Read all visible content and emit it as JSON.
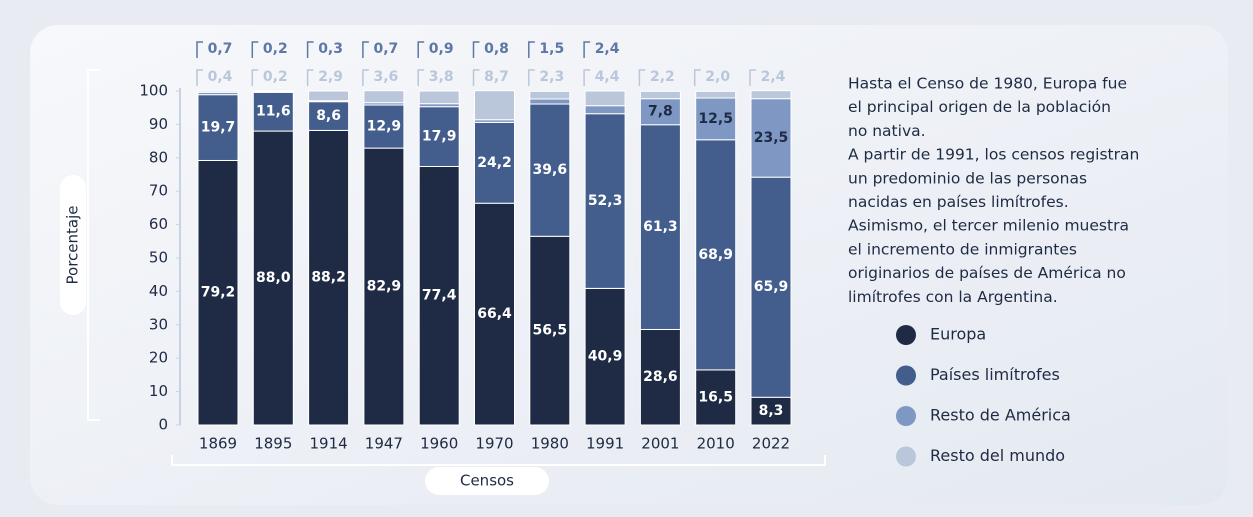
{
  "chart_data": {
    "type": "stacked_bar",
    "categories": [
      "1869",
      "1895",
      "1914",
      "1947",
      "1960",
      "1970",
      "1980",
      "1991",
      "2001",
      "2010",
      "2022"
    ],
    "series": [
      {
        "name": "Europa",
        "color": "#1f2b44",
        "values": [
          79.2,
          88.0,
          88.2,
          82.9,
          77.4,
          66.4,
          56.5,
          40.9,
          28.6,
          16.5,
          8.3
        ],
        "value_labels": [
          "79,2",
          "88,0",
          "88,2",
          "82,9",
          "77,4",
          "66,4",
          "56,5",
          "40,9",
          "28,6",
          "16,5",
          "8,3"
        ]
      },
      {
        "name": "Países limítrofes",
        "color": "#435d8c",
        "values": [
          19.7,
          11.6,
          8.6,
          12.9,
          17.9,
          24.2,
          39.6,
          52.3,
          61.3,
          68.9,
          65.9
        ],
        "value_labels": [
          "19,7",
          "11,6",
          "8,6",
          "12,9",
          "17,9",
          "24,2",
          "39,6",
          "52,3",
          "61,3",
          "68,9",
          "65,9"
        ]
      },
      {
        "name": "Resto de América",
        "color": "#7f98c3",
        "values": [
          0.7,
          0.2,
          0.3,
          0.7,
          0.9,
          0.8,
          1.5,
          2.4,
          7.8,
          12.5,
          23.5
        ],
        "value_labels": [
          "0,7",
          "0,2",
          "0,3",
          "0,7",
          "0,9",
          "0,8",
          "1,5",
          "2,4",
          "7,8",
          "12,5",
          "23,5"
        ]
      },
      {
        "name": "Resto del mundo",
        "color": "#bac7da",
        "values": [
          0.4,
          0.2,
          2.9,
          3.6,
          3.8,
          8.7,
          2.3,
          4.4,
          2.2,
          2.0,
          2.4
        ],
        "value_labels": [
          "0,4",
          "0,2",
          "2,9",
          "3,6",
          "3,8",
          "8,7",
          "2,3",
          "4,4",
          "2,2",
          "2,0",
          "2,4"
        ]
      }
    ],
    "ylim": [
      0,
      100
    ],
    "yticks": [
      0,
      10,
      20,
      30,
      40,
      50,
      60,
      70,
      80,
      90,
      100
    ],
    "y_label": "Porcentaje",
    "x_label": "Censos",
    "note_lines": [
      "Hasta el Censo de 1980, Europa fue",
      "el principal origen de la población",
      "no nativa.",
      "A partir de 1991, los censos registran",
      "un predominio de las personas",
      "nacidas en países limítrofes.",
      "Asimismo, el tercer milenio muestra",
      "el incremento de inmigrantes",
      "originarios de países de América no",
      "limítrofes con la Argentina."
    ]
  }
}
